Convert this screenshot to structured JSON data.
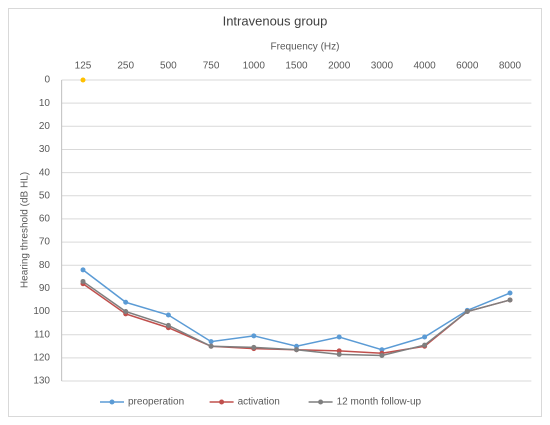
{
  "chart_data": {
    "type": "line",
    "title": "Intravenous group",
    "x_label": "Frequency (Hz)",
    "y_label": "Hearing threshold (dB HL)",
    "categories": [
      "125",
      "250",
      "500",
      "750",
      "1000",
      "1500",
      "2000",
      "3000",
      "4000",
      "6000",
      "8000"
    ],
    "series": [
      {
        "name": "preoperation",
        "color": "#5b9bd5",
        "values": [
          82,
          96,
          101.5,
          113,
          110.5,
          115,
          111,
          116.5,
          111,
          99.5,
          92
        ]
      },
      {
        "name": "activation",
        "color": "#c0504d",
        "values": [
          88,
          101,
          107,
          115,
          116,
          116.5,
          117,
          118,
          115,
          100,
          95
        ]
      },
      {
        "name": "12 month follow-up",
        "color": "#7f7f7f",
        "values": [
          87,
          100,
          106,
          115,
          115.5,
          116.5,
          118.5,
          119,
          114.5,
          100,
          95
        ]
      },
      {
        "color": "#ffc000",
        "values": [
          0,
          null,
          null,
          null,
          null,
          null,
          null,
          null,
          null,
          null,
          null
        ]
      }
    ],
    "ylim": [
      0,
      130
    ],
    "y_reversed": true,
    "yticks": [
      0,
      10,
      20,
      30,
      40,
      50,
      60,
      70,
      80,
      90,
      100,
      110,
      120,
      130
    ],
    "grid": true,
    "legend": "bottom",
    "x_axis_position": "top"
  }
}
